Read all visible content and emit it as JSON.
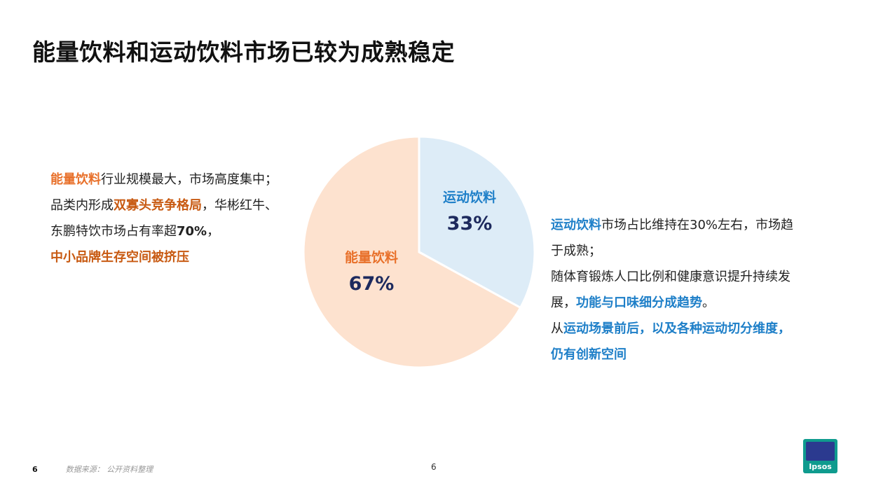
{
  "title": "能量饮料和运动饮料市场已较为成熟稳定",
  "left_block": {
    "l1_a": "能量饮料",
    "l1_b": "行业规模最大，市场高度集中；",
    "l2_a": "品类内形成",
    "l2_b": "双寡头竞争格局",
    "l2_c": "，华彬红牛、",
    "l3_a": "东鹏特饮市场占有率超",
    "l3_b": "70%",
    "l3_c": "，",
    "l4": "中小品牌生存空间被挤压"
  },
  "right_block": {
    "r1_a": "运动饮料",
    "r1_b": "市场占比维持在30%左右，市场趋",
    "r2": "于成熟；",
    "r3": "随体育锻炼人口比例和健康意识提升持续发",
    "r4_a": "展，",
    "r4_b": "功能与口味细分成趋势",
    "r4_c": "。",
    "r5_a": "从",
    "r5_b": "运动场景前后，以及各种运动切分维度，",
    "r6": "仍有创新空间"
  },
  "chart_data": {
    "type": "pie",
    "slices": [
      {
        "label": "运动饮料",
        "value": 33,
        "value_label": "33%",
        "color": "#ddecf7",
        "label_color": "#1e7fc8"
      },
      {
        "label": "能量饮料",
        "value": 67,
        "value_label": "67%",
        "color": "#fde2cf",
        "label_color": "#e8702a"
      }
    ],
    "value_label_color": "#1d2a5e"
  },
  "footer": {
    "page_small": "6",
    "source": "数据来源：  公开资料整理",
    "page": "6"
  },
  "logo": {
    "text": "Ipsos",
    "bg": "#0f9b8e",
    "inner": "#2b3a8f"
  }
}
